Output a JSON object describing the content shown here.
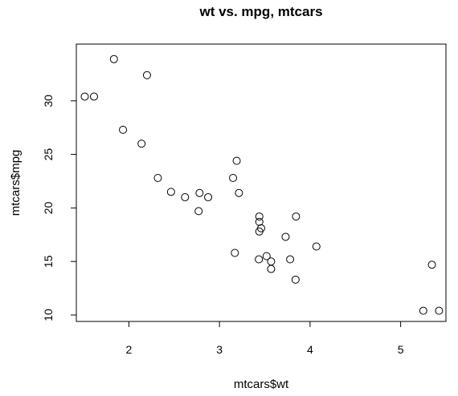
{
  "chart_data": {
    "type": "scatter",
    "title": "wt vs. mpg, mtcars",
    "xlabel": "mtcars$wt",
    "ylabel": "mtcars$mpg",
    "xlim": [
      1.42,
      5.5
    ],
    "ylim": [
      9.4,
      35.3
    ],
    "xticks": [
      2,
      3,
      4,
      5
    ],
    "yticks": [
      10,
      15,
      20,
      25,
      30
    ],
    "marker": "open-circle",
    "grid": false,
    "points": [
      {
        "x": 1.513,
        "y": 30.4
      },
      {
        "x": 1.615,
        "y": 30.4
      },
      {
        "x": 1.835,
        "y": 33.9
      },
      {
        "x": 1.935,
        "y": 27.3
      },
      {
        "x": 2.14,
        "y": 26.0
      },
      {
        "x": 2.2,
        "y": 32.4
      },
      {
        "x": 2.32,
        "y": 22.8
      },
      {
        "x": 2.465,
        "y": 21.5
      },
      {
        "x": 2.62,
        "y": 21.0
      },
      {
        "x": 2.77,
        "y": 19.7
      },
      {
        "x": 2.78,
        "y": 21.4
      },
      {
        "x": 2.875,
        "y": 21.0
      },
      {
        "x": 3.15,
        "y": 22.8
      },
      {
        "x": 3.17,
        "y": 15.8
      },
      {
        "x": 3.19,
        "y": 24.4
      },
      {
        "x": 3.215,
        "y": 21.4
      },
      {
        "x": 3.435,
        "y": 15.2
      },
      {
        "x": 3.44,
        "y": 18.7
      },
      {
        "x": 3.44,
        "y": 19.2
      },
      {
        "x": 3.44,
        "y": 17.8
      },
      {
        "x": 3.46,
        "y": 18.1
      },
      {
        "x": 3.52,
        "y": 15.5
      },
      {
        "x": 3.57,
        "y": 15.0
      },
      {
        "x": 3.57,
        "y": 14.3
      },
      {
        "x": 3.73,
        "y": 17.3
      },
      {
        "x": 3.78,
        "y": 15.2
      },
      {
        "x": 3.84,
        "y": 13.3
      },
      {
        "x": 3.845,
        "y": 19.2
      },
      {
        "x": 4.07,
        "y": 16.4
      },
      {
        "x": 5.25,
        "y": 10.4
      },
      {
        "x": 5.345,
        "y": 14.7
      },
      {
        "x": 5.424,
        "y": 10.4
      }
    ]
  }
}
